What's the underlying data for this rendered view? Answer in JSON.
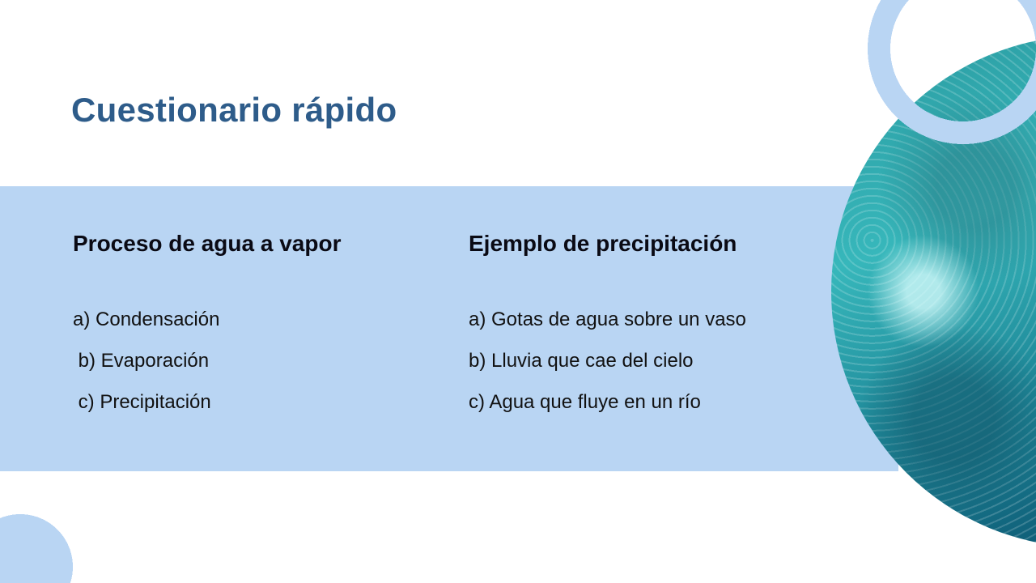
{
  "title": "Cuestionario rápido",
  "questions": [
    {
      "heading": "Proceso de agua a vapor",
      "options": [
        "a) Condensación",
        " b) Evaporación",
        " c) Precipitación"
      ]
    },
    {
      "heading": "Ejemplo de precipitación",
      "options": [
        "a) Gotas de agua sobre un vaso",
        "b) Lluvia que cae del cielo",
        "c) Agua que fluye en un río"
      ]
    }
  ],
  "colors": {
    "accent": "#b9d5f3",
    "title": "#2e5c8a"
  },
  "image": "water-bubbles-photo"
}
